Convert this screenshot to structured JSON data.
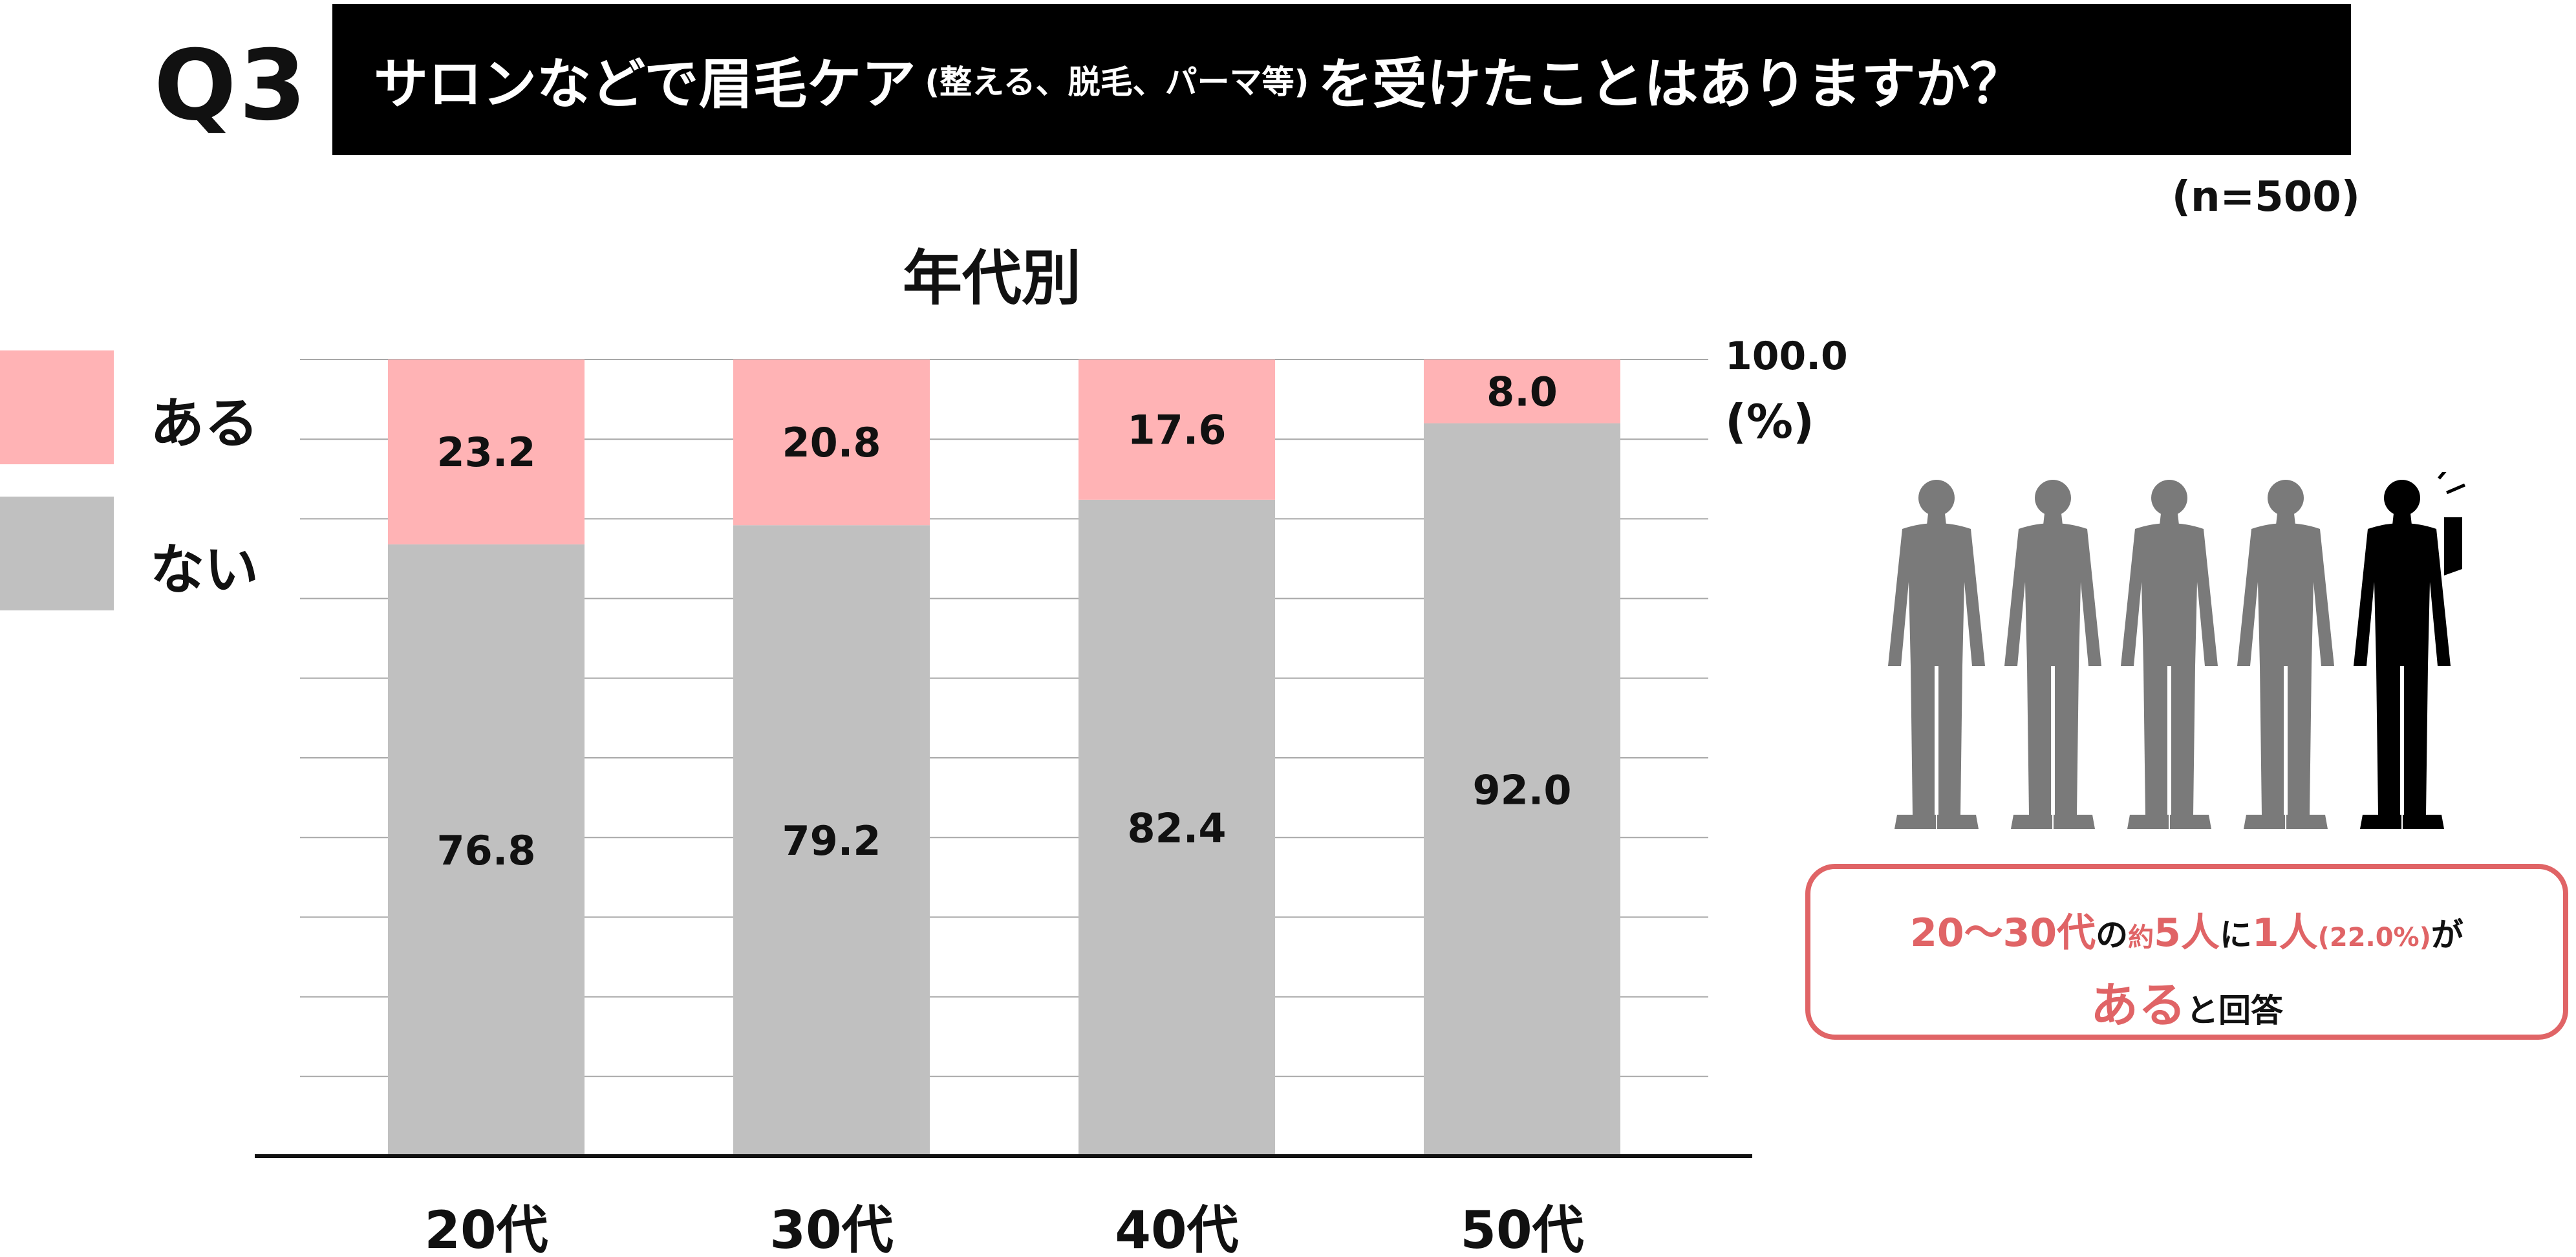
{
  "header": {
    "q_label": "Q3",
    "title_main": "サロンなどで眉毛ケア",
    "title_paren": "(整える、脱毛、パーマ等)",
    "title_end": "を受けたことはありますか？"
  },
  "sample_size": "(n=500)",
  "legend": [
    {
      "label": "ある",
      "color": "#ffb3b5"
    },
    {
      "label": "ない",
      "color": "#c0c0c0"
    }
  ],
  "axis": {
    "top_label": "100.0",
    "unit": "(%)"
  },
  "chart_data": {
    "type": "bar",
    "stacked": true,
    "title": "年代別",
    "categories": [
      "20代",
      "30代",
      "40代",
      "50代"
    ],
    "series": [
      {
        "name": "ない",
        "values": [
          76.8,
          79.2,
          82.4,
          92.0
        ],
        "labels": [
          "76.8",
          "79.2",
          "82.4",
          "92.0"
        ],
        "color": "#c0c0c0"
      },
      {
        "name": "ある",
        "values": [
          23.2,
          20.8,
          17.6,
          8.0
        ],
        "labels": [
          "23.2",
          "20.8",
          "17.6",
          "8.0"
        ],
        "color": "#ffb3b5"
      }
    ],
    "ylim": [
      0,
      100
    ],
    "grid": true,
    "legend_position": "left"
  },
  "callout": {
    "part1": "20～30代",
    "part2": "の",
    "part3": "約",
    "part4": "5人",
    "part5": "に",
    "part6": "1人",
    "part7": "(22.0%)",
    "part8": "が",
    "part9": "ある",
    "part10": "と回答",
    "accent_color": "#e06466"
  },
  "illustration": {
    "people_total": 5,
    "people_highlighted": 1,
    "icon": "businessman-icon"
  }
}
